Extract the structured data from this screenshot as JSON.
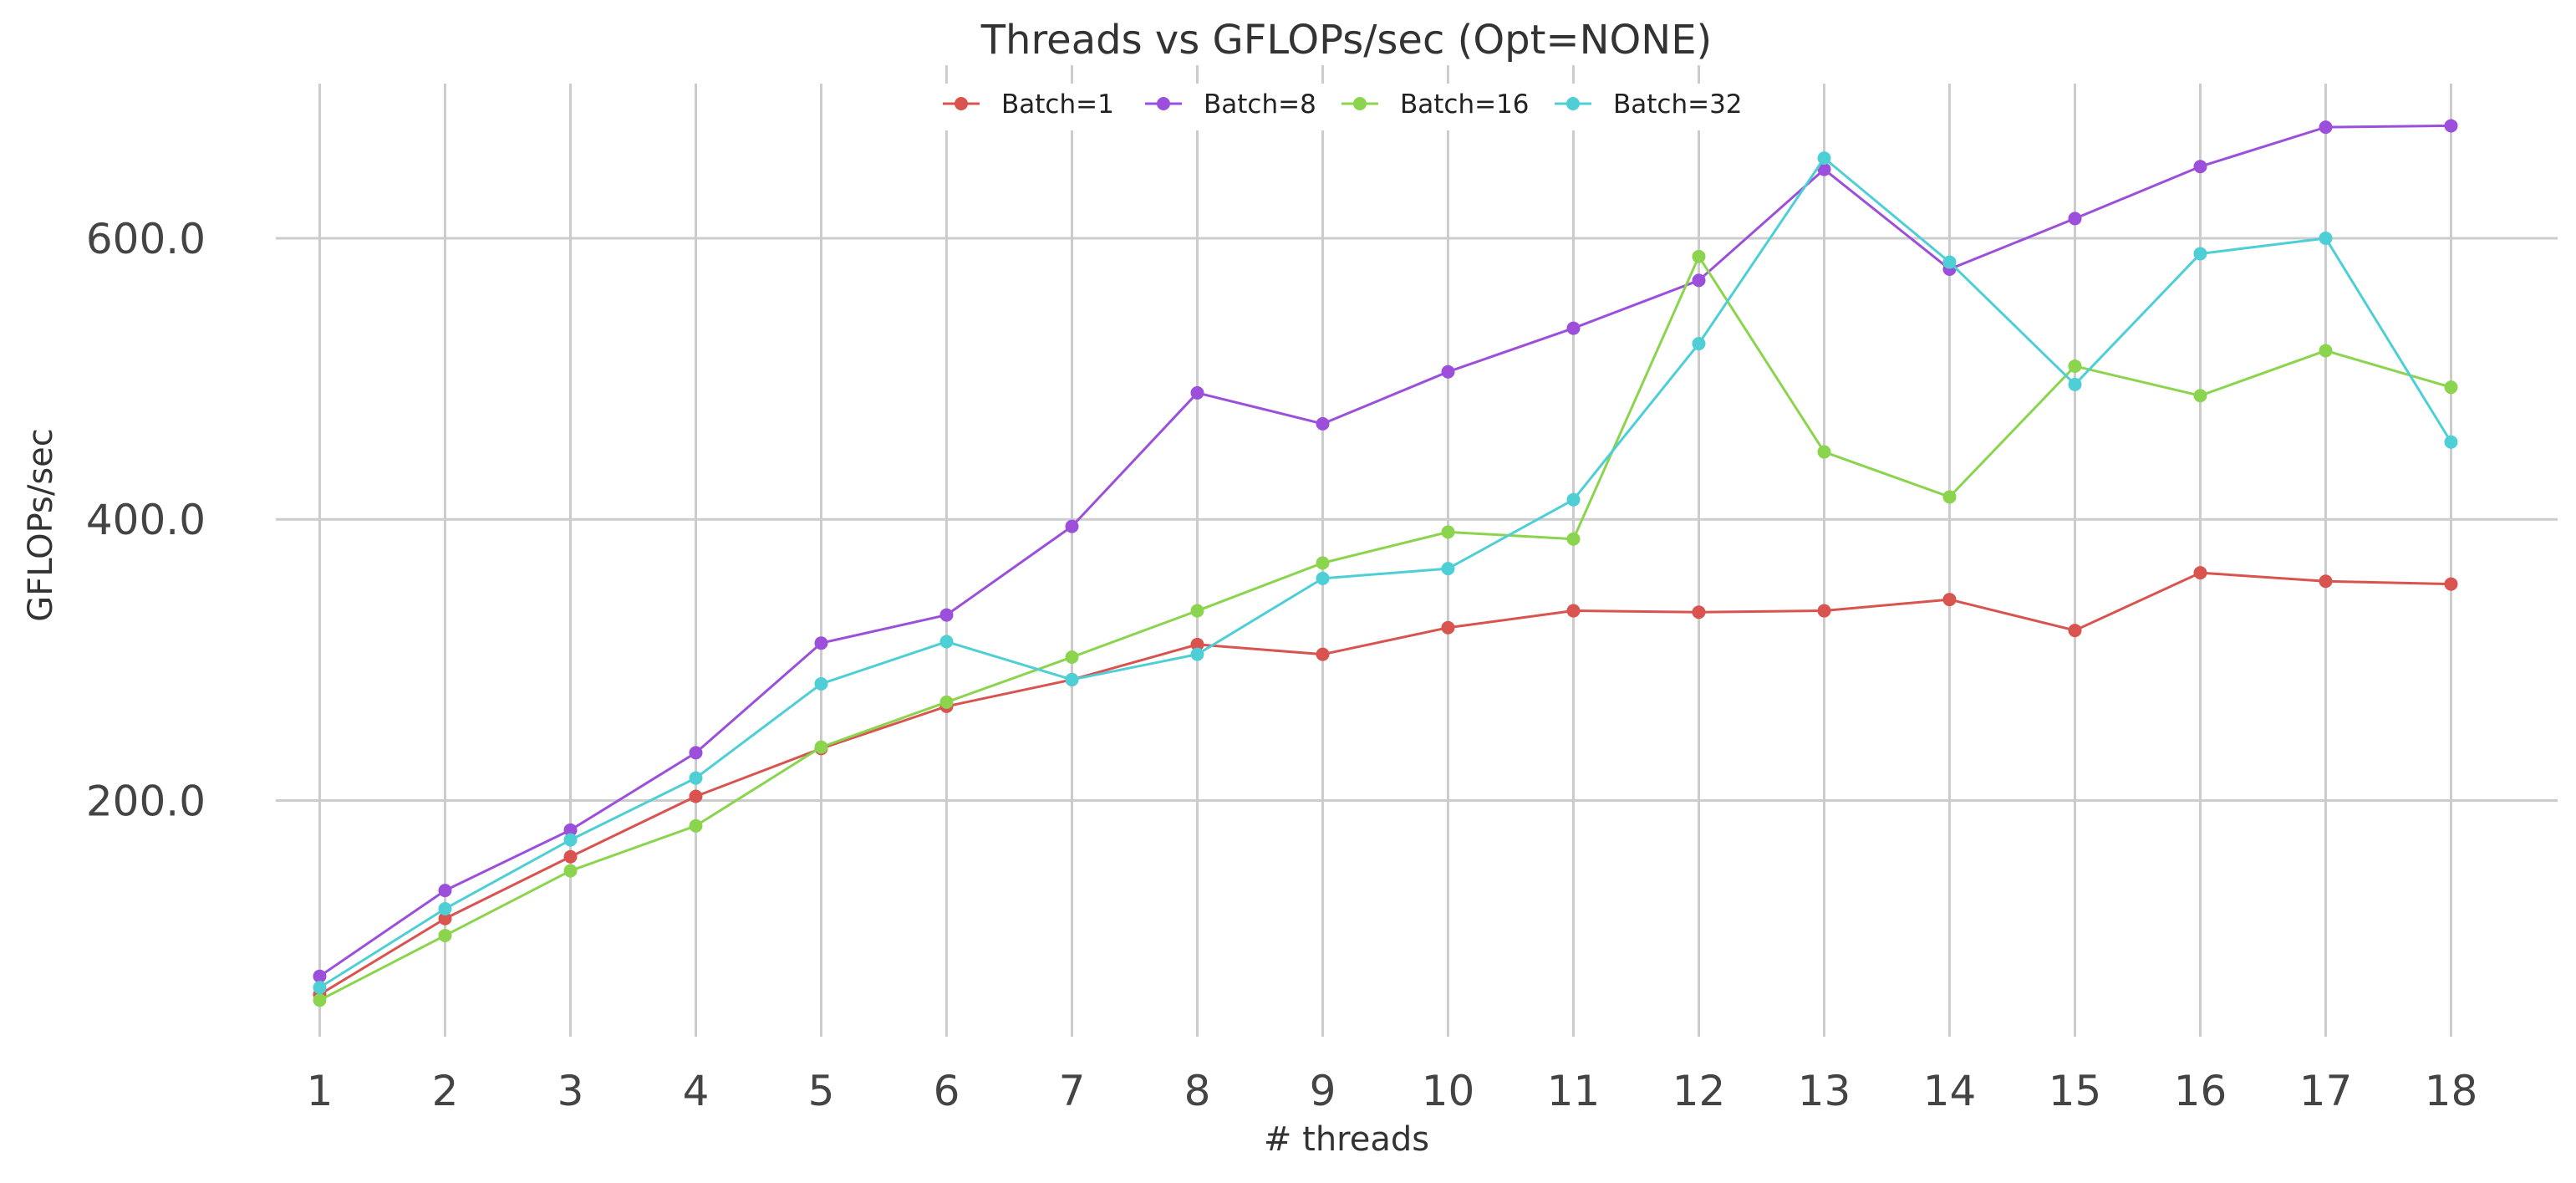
{
  "chart_data": {
    "type": "line",
    "title": "Threads vs GFLOPs/sec (Opt=NONE)",
    "xlabel": "# threads",
    "ylabel": "GFLOPs/sec",
    "x": [
      1,
      2,
      3,
      4,
      5,
      6,
      7,
      8,
      9,
      10,
      11,
      12,
      13,
      14,
      15,
      16,
      17,
      18
    ],
    "x_tick_labels": [
      "1",
      "2",
      "3",
      "4",
      "5",
      "6",
      "7",
      "8",
      "9",
      "10",
      "11",
      "12",
      "13",
      "14",
      "15",
      "16",
      "17",
      "18"
    ],
    "y_ticks": [
      200,
      400,
      600
    ],
    "y_tick_labels": [
      "200.0",
      "400.0",
      "600.0"
    ],
    "xlim": [
      0.65,
      18.85
    ],
    "ylim": [
      32,
      710
    ],
    "grid": true,
    "legend_position": "top-center",
    "series": [
      {
        "name": "Batch=1",
        "color": "#d9534f",
        "values": [
          62,
          116,
          160,
          203,
          237,
          267,
          286,
          311,
          304,
          323,
          335,
          334,
          335,
          343,
          321,
          362,
          356,
          354
        ]
      },
      {
        "name": "Batch=8",
        "color": "#9b4fdb",
        "values": [
          75,
          136,
          179,
          234,
          312,
          332,
          395,
          490,
          468,
          505,
          536,
          570,
          649,
          578,
          614,
          651,
          679,
          680
        ]
      },
      {
        "name": "Batch=16",
        "color": "#8bd44e",
        "values": [
          58,
          104,
          150,
          182,
          238,
          270,
          302,
          335,
          369,
          391,
          386,
          587,
          448,
          416,
          509,
          488,
          520,
          494
        ]
      },
      {
        "name": "Batch=32",
        "color": "#4ecfd6",
        "values": [
          67,
          123,
          172,
          216,
          283,
          313,
          286,
          304,
          358,
          365,
          414,
          525,
          657,
          583,
          496,
          589,
          600,
          455
        ]
      }
    ]
  }
}
